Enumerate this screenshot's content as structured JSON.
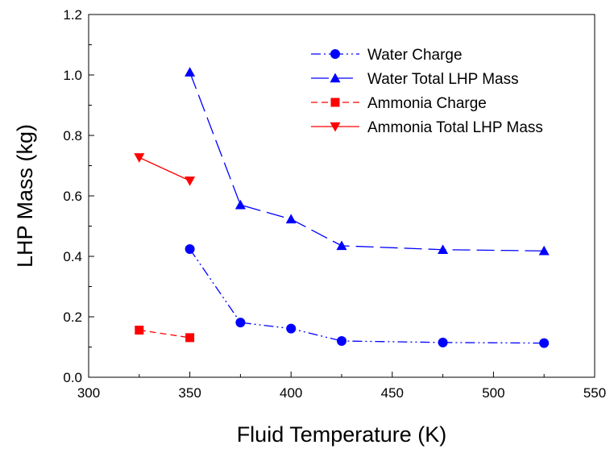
{
  "chart_data": {
    "type": "line",
    "xlabel": "Fluid Temperature (K)",
    "ylabel": "LHP Mass (kg)",
    "xlim": [
      300,
      550
    ],
    "ylim": [
      0.0,
      1.2
    ],
    "x_ticks": [
      300,
      350,
      400,
      450,
      500,
      550
    ],
    "y_ticks": [
      0.0,
      0.2,
      0.4,
      0.6,
      0.8,
      1.0,
      1.2
    ],
    "x_tick_labels": [
      "300",
      "350",
      "400",
      "450",
      "500",
      "550"
    ],
    "y_tick_labels": [
      "0.0",
      "0.2",
      "0.4",
      "0.6",
      "0.8",
      "1.0",
      "1.2"
    ],
    "grid": false,
    "legend_position": "top-right",
    "series": [
      {
        "name": "Water Charge",
        "color": "#0000ff",
        "marker": "circle",
        "line_style": "dash-dot-dot",
        "x": [
          350,
          375,
          400,
          425,
          475,
          525
        ],
        "y": [
          0.424,
          0.181,
          0.161,
          0.12,
          0.115,
          0.113
        ]
      },
      {
        "name": "Water Total LHP Mass",
        "color": "#0000ff",
        "marker": "triangle-up",
        "line_style": "long-dash",
        "x": [
          350,
          375,
          400,
          425,
          475,
          525
        ],
        "y": [
          1.009,
          0.57,
          0.523,
          0.435,
          0.422,
          0.418
        ]
      },
      {
        "name": "Ammonia Charge",
        "color": "#ff0000",
        "marker": "square",
        "line_style": "dash",
        "x": [
          325,
          350
        ],
        "y": [
          0.156,
          0.131
        ]
      },
      {
        "name": "Ammonia Total LHP Mass",
        "color": "#ff0000",
        "marker": "triangle-down",
        "line_style": "solid",
        "x": [
          325,
          350
        ],
        "y": [
          0.727,
          0.65
        ]
      }
    ]
  }
}
